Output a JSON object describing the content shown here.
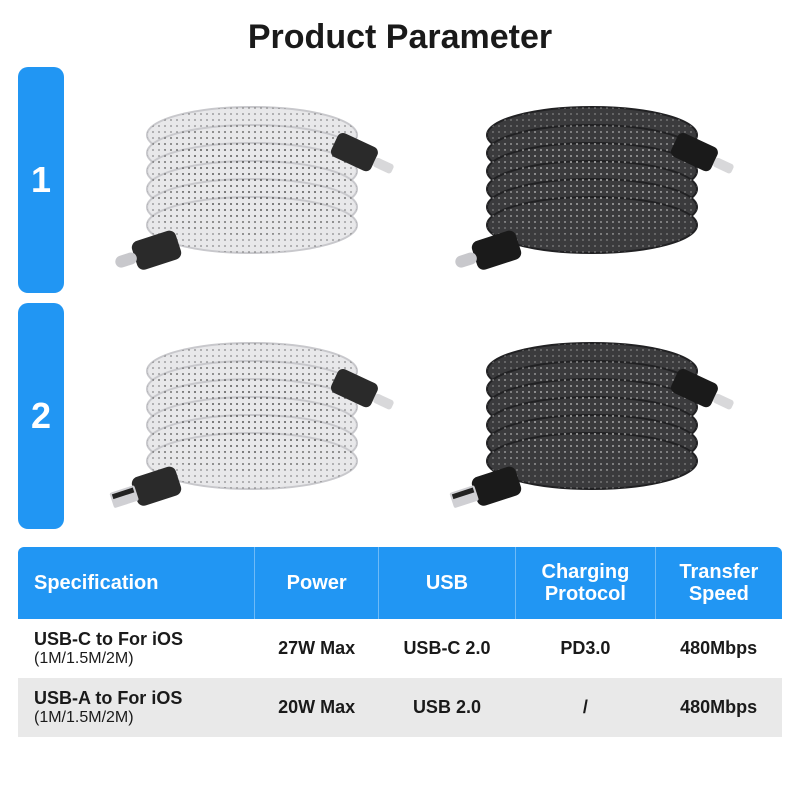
{
  "title": "Product Parameter",
  "accent_color": "#2196f3",
  "rows": [
    {
      "number": "1"
    },
    {
      "number": "2"
    }
  ],
  "cable_variants": {
    "light": {
      "fill": "#e8e8ea",
      "dotted": true,
      "connector": "#2a2a2a"
    },
    "dark": {
      "fill": "#3b3b3d",
      "dotted": true,
      "connector": "#1a1a1a"
    }
  },
  "table": {
    "columns": [
      "Specification",
      "Power",
      "USB",
      "Charging\nProtocol",
      "Transfer\nSpeed"
    ],
    "rows": [
      {
        "spec_main": "USB-C to For iOS",
        "spec_sub": "(1M/1.5M/2M)",
        "power": "27W Max",
        "usb": "USB-C 2.0",
        "protocol": "PD3.0",
        "speed": "480Mbps"
      },
      {
        "spec_main": "USB-A to For iOS",
        "spec_sub": "(1M/1.5M/2M)",
        "power": "20W Max",
        "usb": "USB 2.0",
        "protocol": "/",
        "speed": "480Mbps"
      }
    ]
  }
}
